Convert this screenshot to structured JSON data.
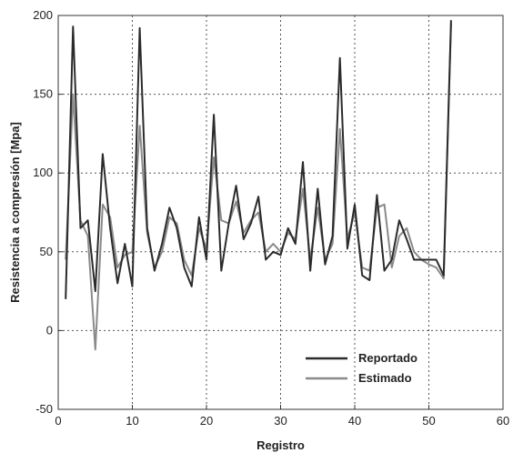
{
  "chart_data": {
    "type": "line",
    "title": "",
    "xlabel": "Registro",
    "ylabel": "Resistencia a compresión [Mpa]",
    "xlim": [
      0,
      60
    ],
    "ylim": [
      -50,
      200
    ],
    "xticks": [
      0,
      10,
      20,
      30,
      40,
      50,
      60
    ],
    "yticks": [
      -50,
      0,
      50,
      100,
      150,
      200
    ],
    "grid": true,
    "legend_position": "bottom-center",
    "series": [
      {
        "name": "Reportado",
        "color": "#2b2b2b",
        "x": [
          1,
          2,
          3,
          4,
          5,
          6,
          7,
          8,
          9,
          10,
          11,
          12,
          13,
          14,
          15,
          16,
          17,
          18,
          19,
          20,
          21,
          22,
          23,
          24,
          25,
          26,
          27,
          28,
          29,
          30,
          31,
          32,
          33,
          34,
          35,
          36,
          37,
          38,
          39,
          40,
          41,
          42,
          43,
          44,
          45,
          46,
          47,
          48,
          49,
          50,
          51,
          52,
          53
        ],
        "values": [
          20,
          193,
          65,
          70,
          25,
          112,
          65,
          30,
          55,
          28,
          192,
          65,
          38,
          55,
          78,
          65,
          40,
          28,
          72,
          45,
          137,
          38,
          68,
          92,
          58,
          68,
          85,
          45,
          50,
          48,
          65,
          55,
          107,
          38,
          90,
          42,
          60,
          173,
          52,
          80,
          35,
          32,
          86,
          38,
          45,
          70,
          58,
          45,
          45,
          45,
          45,
          35,
          197
        ]
      },
      {
        "name": "Estimado",
        "color": "#8a8a8a",
        "x": [
          1,
          2,
          3,
          4,
          5,
          6,
          7,
          8,
          9,
          10,
          11,
          12,
          13,
          14,
          15,
          16,
          17,
          18,
          19,
          20,
          21,
          22,
          23,
          24,
          25,
          26,
          27,
          28,
          29,
          30,
          31,
          32,
          33,
          34,
          35,
          36,
          37,
          38,
          39,
          40,
          41,
          42,
          43,
          44,
          45,
          46,
          47,
          48,
          49,
          50,
          51,
          52,
          53
        ],
        "values": [
          45,
          150,
          70,
          60,
          -12,
          80,
          72,
          40,
          48,
          50,
          130,
          62,
          40,
          50,
          72,
          68,
          45,
          35,
          65,
          52,
          110,
          70,
          68,
          82,
          62,
          70,
          75,
          50,
          55,
          50,
          62,
          58,
          90,
          45,
          78,
          45,
          55,
          128,
          58,
          75,
          40,
          38,
          78,
          80,
          40,
          60,
          65,
          50,
          45,
          42,
          40,
          33,
          195
        ]
      }
    ]
  }
}
